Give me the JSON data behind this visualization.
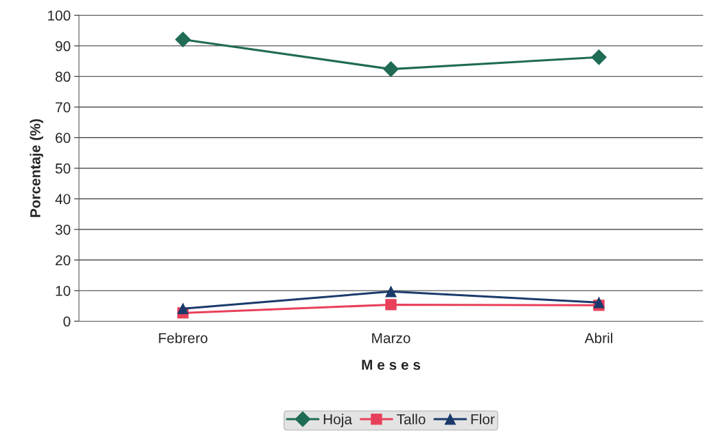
{
  "chart_data": {
    "type": "line",
    "xlabel": "M e s e s",
    "ylabel": "Porcentaje (%)",
    "categories": [
      "Febrero",
      "Marzo",
      "Abril"
    ],
    "series": [
      {
        "name": "Hoja",
        "color": "#1f6b55",
        "marker": "diamond",
        "values": [
          92.1,
          82.4,
          86.3
        ]
      },
      {
        "name": "Tallo",
        "color": "#e8405a",
        "marker": "square",
        "values": [
          2.7,
          5.4,
          5.2
        ]
      },
      {
        "name": "Flor",
        "color": "#1b3a6b",
        "marker": "triangle",
        "values": [
          4.1,
          9.7,
          6.1
        ]
      }
    ],
    "ylim": [
      0,
      100
    ],
    "yticks": [
      0,
      10,
      20,
      30,
      40,
      50,
      60,
      70,
      80,
      90,
      100
    ],
    "grid": "y",
    "legend": "bottom"
  }
}
